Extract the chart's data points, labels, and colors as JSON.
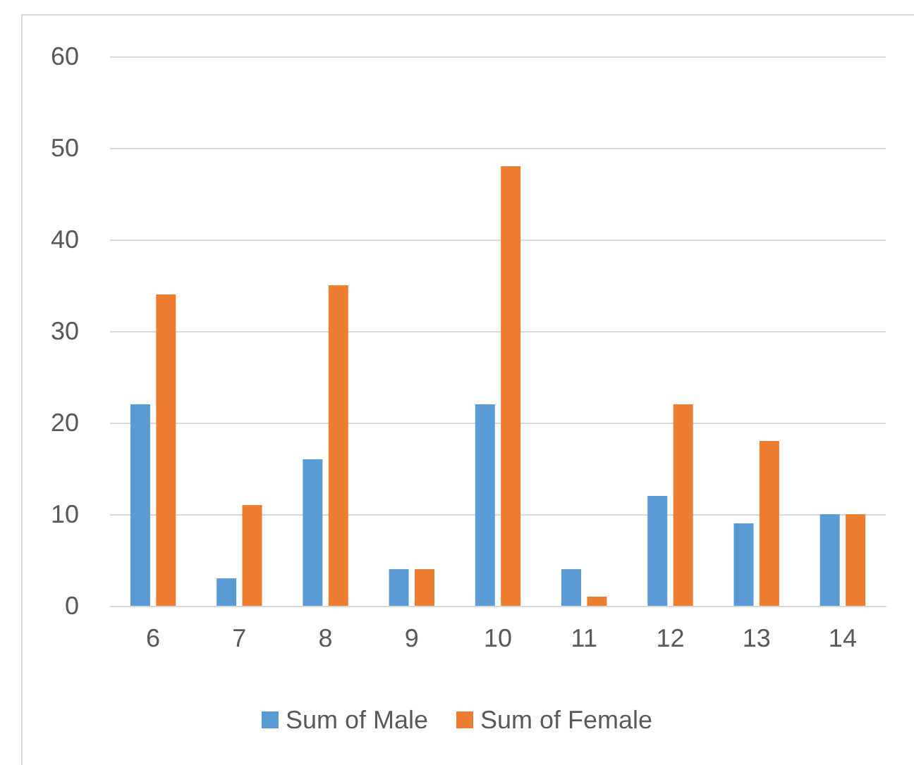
{
  "chart_data": {
    "type": "bar",
    "categories": [
      "6",
      "7",
      "8",
      "9",
      "10",
      "11",
      "12",
      "13",
      "14"
    ],
    "series": [
      {
        "name": "Sum of Male",
        "color": "#5b9bd5",
        "values": [
          22,
          3,
          16,
          4,
          22,
          4,
          12,
          9,
          10
        ]
      },
      {
        "name": "Sum of Female",
        "color": "#ed7d31",
        "values": [
          34,
          11,
          35,
          4,
          48,
          1,
          22,
          18,
          10
        ]
      }
    ],
    "ylim": [
      0,
      60
    ],
    "yticks": [
      0,
      10,
      20,
      30,
      40,
      50,
      60
    ],
    "grid": "y",
    "legend": "bottom"
  }
}
